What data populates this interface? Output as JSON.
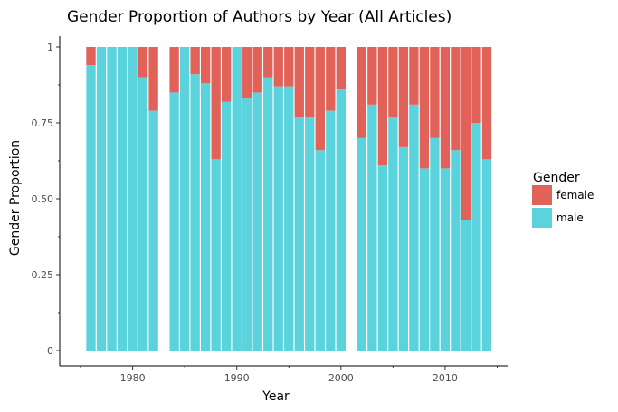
{
  "chart_data": {
    "type": "bar",
    "stacked": true,
    "title": "Gender Proportion of Authors by Year (All Articles)",
    "xlabel": "Year",
    "ylabel": "Gender Proportion",
    "xlim": [
      1973,
      2016
    ],
    "ylim": [
      0,
      1
    ],
    "x_ticks": [
      1980,
      1990,
      2000,
      2010
    ],
    "x_tick_labels": [
      "1980",
      "1990",
      "2000",
      "2010"
    ],
    "y_ticks": [
      0,
      0.25,
      0.5,
      0.75,
      1
    ],
    "y_tick_labels": [
      "0",
      "0.25",
      "0.50",
      "0.75",
      "1"
    ],
    "grid": false,
    "legend": {
      "title": "Gender",
      "position": "right",
      "entries": [
        {
          "label": "female",
          "color": "#e06259"
        },
        {
          "label": "male",
          "color": "#5bd3dc"
        }
      ]
    },
    "x": [
      1976,
      1977,
      1978,
      1979,
      1980,
      1981,
      1982,
      1984,
      1985,
      1986,
      1987,
      1988,
      1989,
      1990,
      1991,
      1992,
      1993,
      1994,
      1995,
      1996,
      1997,
      1998,
      1999,
      2000,
      2002,
      2003,
      2004,
      2005,
      2006,
      2007,
      2008,
      2009,
      2010,
      2011,
      2012,
      2013,
      2014
    ],
    "series": [
      {
        "name": "male",
        "color": "#5bd3dc",
        "values": [
          0.94,
          1.0,
          1.0,
          1.0,
          1.0,
          0.9,
          0.79,
          0.85,
          1.0,
          0.91,
          0.88,
          0.63,
          0.82,
          1.0,
          0.83,
          0.85,
          0.9,
          0.87,
          0.87,
          0.77,
          0.77,
          0.66,
          0.79,
          0.86,
          0.7,
          0.81,
          0.61,
          0.77,
          0.67,
          0.81,
          0.6,
          0.7,
          0.6,
          0.66,
          0.43,
          0.75,
          0.63
        ]
      },
      {
        "name": "female",
        "color": "#e06259",
        "values": [
          0.06,
          0.0,
          0.0,
          0.0,
          0.0,
          0.1,
          0.21,
          0.15,
          0.0,
          0.09,
          0.12,
          0.37,
          0.18,
          0.0,
          0.17,
          0.15,
          0.1,
          0.13,
          0.13,
          0.23,
          0.23,
          0.34,
          0.21,
          0.14,
          0.3,
          0.19,
          0.39,
          0.23,
          0.33,
          0.19,
          0.4,
          0.3,
          0.4,
          0.34,
          0.57,
          0.25,
          0.37
        ]
      }
    ]
  }
}
